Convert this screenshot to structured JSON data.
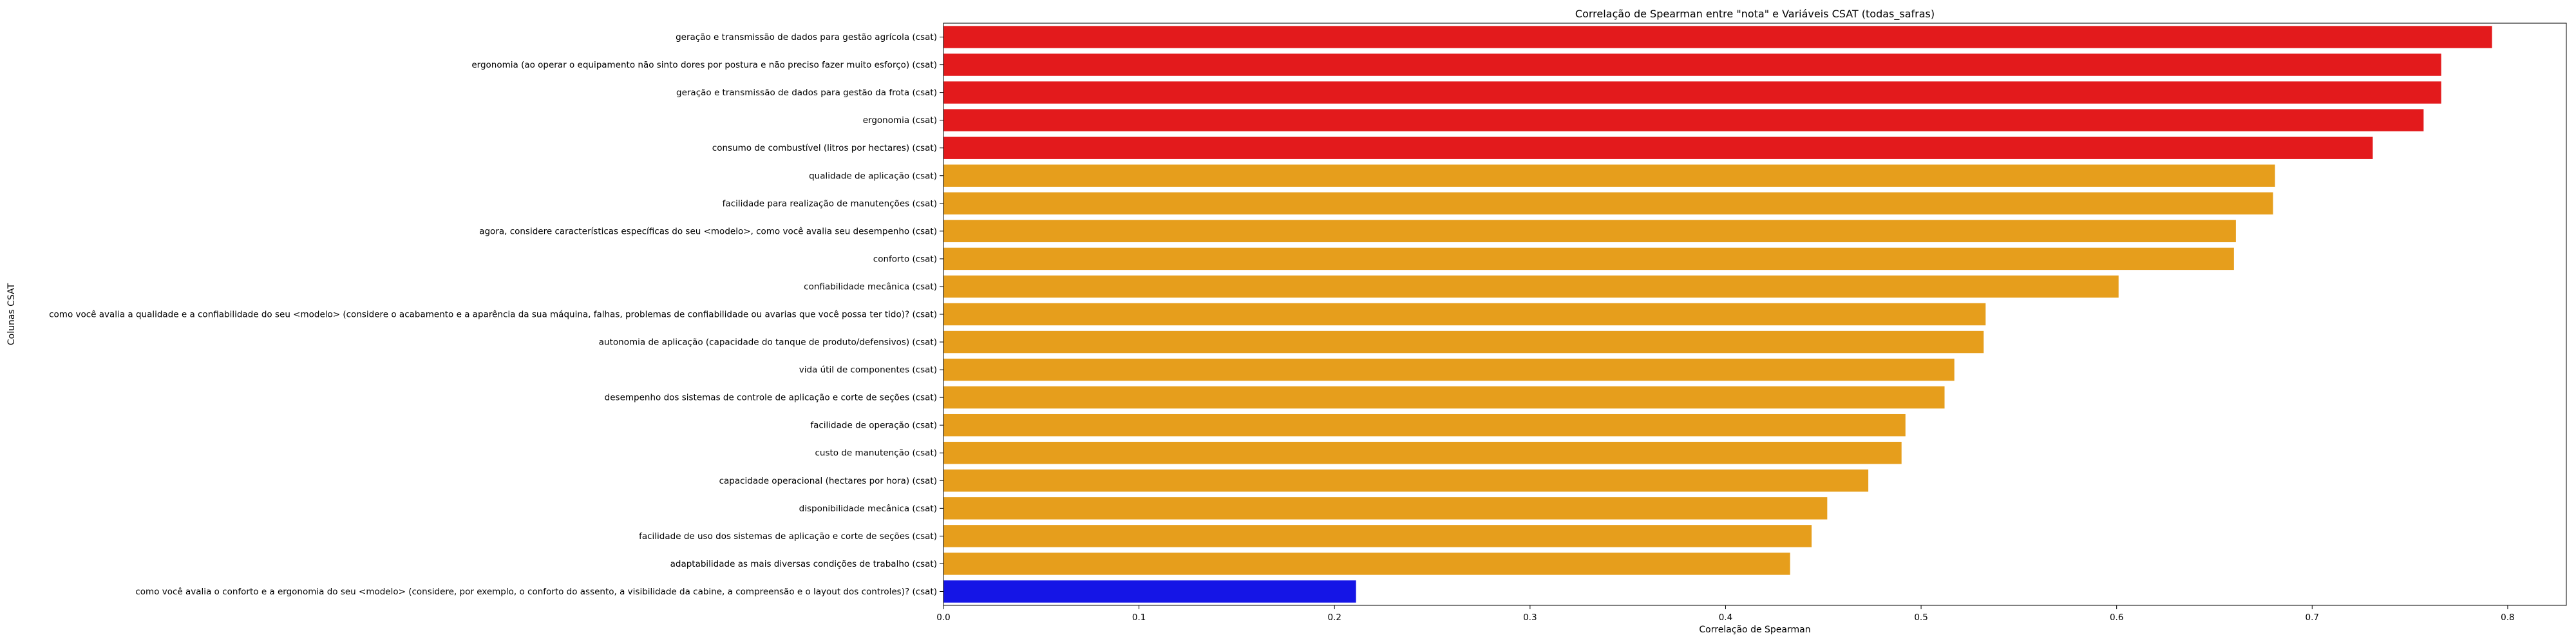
{
  "chart_data": {
    "type": "bar",
    "orientation": "horizontal",
    "title": "Correlação de Spearman entre \"nota\" e Variáveis CSAT (todas_safras)",
    "xlabel": "Correlação de Spearman",
    "ylabel": "Colunas CSAT",
    "xlim": [
      0,
      0.83
    ],
    "xticks": [
      "0.0",
      "0.1",
      "0.2",
      "0.3",
      "0.4",
      "0.5",
      "0.6",
      "0.7",
      "0.8"
    ],
    "grid": false,
    "legend": "none",
    "colors": {
      "high": "#e31a1c",
      "medium": "#e69e1c",
      "low": "#1515e6"
    },
    "categories": [
      "geração e transmissão de dados para gestão agrícola (csat)",
      "ergonomia (ao operar o equipamento não sinto dores por postura e não preciso fazer muito esforço) (csat)",
      "geração e transmissão de dados para gestão da frota (csat)",
      "ergonomia (csat)",
      "consumo de combustível (litros por hectares) (csat)",
      "qualidade de aplicação (csat)",
      "facilidade para realização de manutenções (csat)",
      "agora, considere características específicas do seu <modelo>, como você avalia seu desempenho (csat)",
      "conforto (csat)",
      "confiabilidade mecânica (csat)",
      "como você avalia a qualidade e a confiabilidade do seu <modelo> (considere o acabamento e a aparência da sua máquina, falhas, problemas de confiabilidade ou avarias que você possa ter tido)? (csat)",
      "autonomia de aplicação (capacidade do tanque de produto/defensivos) (csat)",
      "vida útil de componentes (csat)",
      "desempenho dos sistemas de controle de aplicação e corte de seções (csat)",
      "facilidade de operação (csat)",
      "custo de manutenção (csat)",
      "capacidade operacional (hectares por hora) (csat)",
      "disponibilidade mecânica (csat)",
      "facilidade de uso dos sistemas de aplicação e corte de seções (csat)",
      "adaptabilidade as mais diversas condições de trabalho (csat)",
      "como você avalia o conforto e a ergonomia do seu <modelo>  (considere, por exemplo, o conforto do assento, a visibilidade da cabine, a compreensão e o layout dos controles)? (csat)"
    ],
    "values": [
      0.792,
      0.766,
      0.766,
      0.757,
      0.731,
      0.681,
      0.68,
      0.661,
      0.66,
      0.601,
      0.533,
      0.532,
      0.517,
      0.512,
      0.492,
      0.49,
      0.473,
      0.452,
      0.444,
      0.433,
      0.211
    ],
    "bar_color_group": [
      "high",
      "high",
      "high",
      "high",
      "high",
      "medium",
      "medium",
      "medium",
      "medium",
      "medium",
      "medium",
      "medium",
      "medium",
      "medium",
      "medium",
      "medium",
      "medium",
      "medium",
      "medium",
      "medium",
      "low"
    ]
  }
}
